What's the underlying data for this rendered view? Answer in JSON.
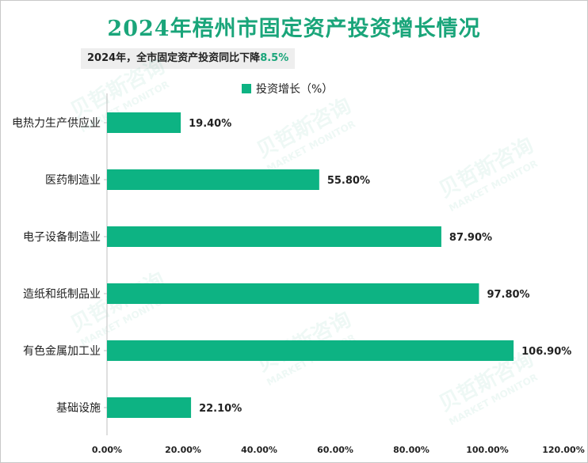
{
  "chart_data": {
    "type": "bar",
    "orientation": "horizontal",
    "title": "2024年梧州市固定资产投资增长情况",
    "subtitle_prefix": "2024年，全市固定资产投资同比下降",
    "subtitle_value": "8.5%",
    "categories": [
      "电热力生产供应业",
      "医药制造业",
      "电子设备制造业",
      "造纸和纸制品业",
      "有色金属加工业",
      "基础设施"
    ],
    "series": [
      {
        "name": "投资增长（%）",
        "values": [
          19.4,
          55.8,
          87.9,
          97.8,
          106.9,
          22.1
        ]
      }
    ],
    "data_labels": [
      "19.40%",
      "55.80%",
      "87.90%",
      "97.80%",
      "106.90%",
      "22.10%"
    ],
    "x_ticks": [
      0,
      20,
      40,
      60,
      80,
      100,
      120
    ],
    "x_tick_labels": [
      "0.00%",
      "20.00%",
      "40.00%",
      "60.00%",
      "80.00%",
      "100.00%",
      "120.00%"
    ],
    "xlim": [
      0,
      120
    ],
    "grid": false,
    "legend_position": "top-center",
    "colors": {
      "bar": "#0db383",
      "title": "#1aa57a",
      "accent": "#1aa57a"
    }
  },
  "watermark": {
    "cn": "贝哲斯咨询",
    "en": "MARKET MONITOR"
  }
}
